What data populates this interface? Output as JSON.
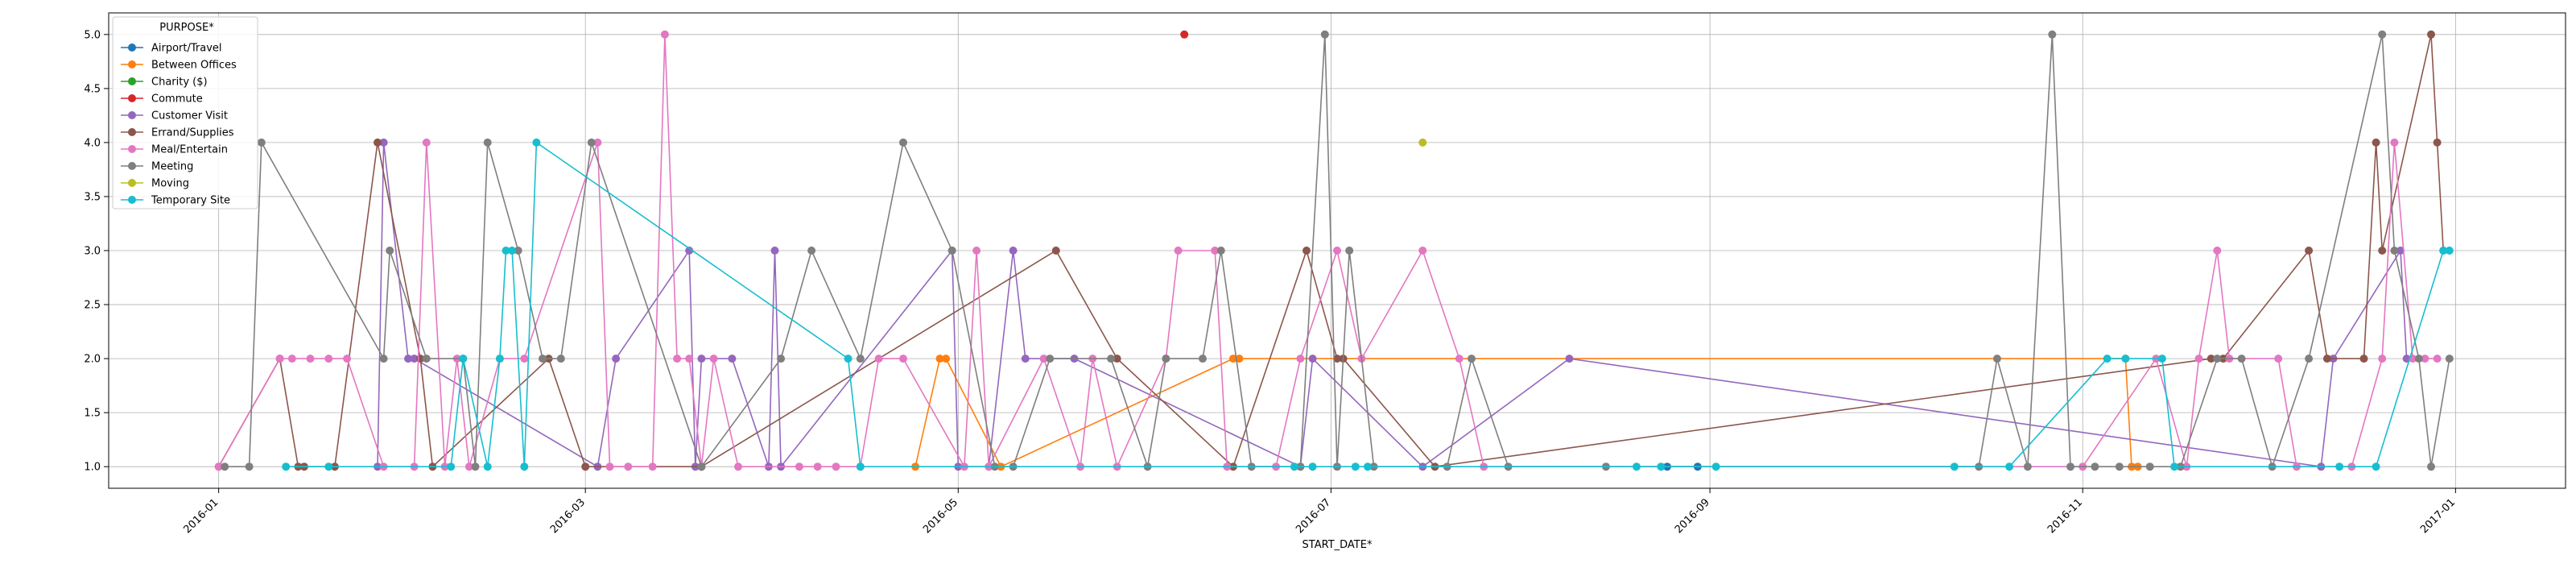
{
  "chart_data": {
    "type": "line",
    "xlabel": "START_DATE*",
    "ylabel": "",
    "legend_title": "PURPOSE*",
    "legend_position": "top-left",
    "grid": true,
    "xlim": [
      "2015-12-14",
      "2017-01-19"
    ],
    "ylim": [
      0.8,
      5.2
    ],
    "x_ticks": [
      "2016-01-01",
      "2016-03-01",
      "2016-05-01",
      "2016-07-01",
      "2016-09-01",
      "2016-11-01",
      "2017-01-01"
    ],
    "x_tick_labels": [
      "2016-01",
      "2016-03",
      "2016-05",
      "2016-07",
      "2016-09",
      "2016-11",
      "2017-01"
    ],
    "y_ticks": [
      1.0,
      1.5,
      2.0,
      2.5,
      3.0,
      3.5,
      4.0,
      4.5,
      5.0
    ],
    "y_tick_labels": [
      "1.0",
      "1.5",
      "2.0",
      "2.5",
      "3.0",
      "3.5",
      "4.0",
      "4.5",
      "5.0"
    ],
    "series": [
      {
        "name": "Airport/Travel",
        "color": "#1f77b4",
        "points": [
          [
            "2016-08-25",
            1
          ],
          [
            "2016-08-30",
            1
          ]
        ]
      },
      {
        "name": "Between Offices",
        "color": "#ff7f0e",
        "points": [
          [
            "2016-04-24",
            1
          ],
          [
            "2016-04-28",
            2
          ],
          [
            "2016-04-29",
            2
          ],
          [
            "2016-05-08",
            1
          ],
          [
            "2016-06-15",
            2
          ],
          [
            "2016-06-16",
            2
          ],
          [
            "2016-11-08",
            2
          ],
          [
            "2016-11-09",
            1
          ],
          [
            "2016-11-10",
            1
          ]
        ]
      },
      {
        "name": "Charity ($)",
        "color": "#2ca02c",
        "points": []
      },
      {
        "name": "Commute",
        "color": "#d62728",
        "points": [
          [
            "2016-06-07",
            5
          ]
        ]
      },
      {
        "name": "Customer Visit",
        "color": "#9467bd",
        "points": [
          [
            "2016-01-27",
            1
          ],
          [
            "2016-01-28",
            4
          ],
          [
            "2016-02-01",
            2
          ],
          [
            "2016-02-02",
            2
          ],
          [
            "2016-03-03",
            1
          ],
          [
            "2016-03-06",
            2
          ],
          [
            "2016-03-18",
            3
          ],
          [
            "2016-03-19",
            1
          ],
          [
            "2016-03-20",
            2
          ],
          [
            "2016-03-25",
            2
          ],
          [
            "2016-03-31",
            1
          ],
          [
            "2016-04-01",
            3
          ],
          [
            "2016-04-02",
            1
          ],
          [
            "2016-04-30",
            3
          ],
          [
            "2016-05-01",
            1
          ],
          [
            "2016-05-06",
            1
          ],
          [
            "2016-05-10",
            3
          ],
          [
            "2016-05-12",
            2
          ],
          [
            "2016-05-20",
            2
          ],
          [
            "2016-06-26",
            1
          ],
          [
            "2016-06-28",
            2
          ],
          [
            "2016-07-16",
            1
          ],
          [
            "2016-08-09",
            2
          ],
          [
            "2016-12-10",
            1
          ],
          [
            "2016-12-12",
            2
          ],
          [
            "2016-12-23",
            3
          ],
          [
            "2016-12-24",
            2
          ]
        ]
      },
      {
        "name": "Errand/Supplies",
        "color": "#8c564b",
        "points": [
          [
            "2016-01-01",
            1
          ],
          [
            "2016-01-11",
            2
          ],
          [
            "2016-01-14",
            1
          ],
          [
            "2016-01-15",
            1
          ],
          [
            "2016-01-20",
            1
          ],
          [
            "2016-01-27",
            4
          ],
          [
            "2016-02-03",
            2
          ],
          [
            "2016-02-05",
            1
          ],
          [
            "2016-02-24",
            2
          ],
          [
            "2016-03-01",
            1
          ],
          [
            "2016-03-20",
            1
          ],
          [
            "2016-05-17",
            3
          ],
          [
            "2016-05-27",
            2
          ],
          [
            "2016-06-15",
            1
          ],
          [
            "2016-06-27",
            3
          ],
          [
            "2016-07-02",
            2
          ],
          [
            "2016-07-03",
            2
          ],
          [
            "2016-07-18",
            1
          ],
          [
            "2016-11-22",
            2
          ],
          [
            "2016-11-24",
            2
          ],
          [
            "2016-12-08",
            3
          ],
          [
            "2016-12-11",
            2
          ],
          [
            "2016-12-17",
            2
          ],
          [
            "2016-12-19",
            4
          ],
          [
            "2016-12-20",
            3
          ],
          [
            "2016-12-28",
            5
          ],
          [
            "2016-12-29",
            4
          ],
          [
            "2016-12-30",
            3
          ]
        ]
      },
      {
        "name": "Meal/Entertain",
        "color": "#e377c2",
        "points": [
          [
            "2016-01-01",
            1
          ],
          [
            "2016-01-11",
            2
          ],
          [
            "2016-01-13",
            2
          ],
          [
            "2016-01-16",
            2
          ],
          [
            "2016-01-19",
            2
          ],
          [
            "2016-01-22",
            2
          ],
          [
            "2016-01-28",
            1
          ],
          [
            "2016-02-02",
            1
          ],
          [
            "2016-02-04",
            4
          ],
          [
            "2016-02-07",
            1
          ],
          [
            "2016-02-09",
            2
          ],
          [
            "2016-02-11",
            1
          ],
          [
            "2016-02-16",
            2
          ],
          [
            "2016-02-20",
            2
          ],
          [
            "2016-03-03",
            4
          ],
          [
            "2016-03-05",
            1
          ],
          [
            "2016-03-08",
            1
          ],
          [
            "2016-03-12",
            1
          ],
          [
            "2016-03-14",
            5
          ],
          [
            "2016-03-16",
            2
          ],
          [
            "2016-03-18",
            2
          ],
          [
            "2016-03-20",
            1
          ],
          [
            "2016-03-22",
            2
          ],
          [
            "2016-03-26",
            1
          ],
          [
            "2016-04-05",
            1
          ],
          [
            "2016-04-08",
            1
          ],
          [
            "2016-04-11",
            1
          ],
          [
            "2016-04-15",
            1
          ],
          [
            "2016-04-18",
            2
          ],
          [
            "2016-04-22",
            2
          ],
          [
            "2016-05-02",
            1
          ],
          [
            "2016-05-04",
            3
          ],
          [
            "2016-05-06",
            1
          ],
          [
            "2016-05-15",
            2
          ],
          [
            "2016-05-21",
            1
          ],
          [
            "2016-05-23",
            2
          ],
          [
            "2016-05-27",
            1
          ],
          [
            "2016-06-04",
            2
          ],
          [
            "2016-06-06",
            3
          ],
          [
            "2016-06-12",
            3
          ],
          [
            "2016-06-14",
            1
          ],
          [
            "2016-06-22",
            1
          ],
          [
            "2016-06-26",
            2
          ],
          [
            "2016-07-02",
            3
          ],
          [
            "2016-07-06",
            2
          ],
          [
            "2016-07-16",
            3
          ],
          [
            "2016-07-22",
            2
          ],
          [
            "2016-07-26",
            1
          ],
          [
            "2016-11-01",
            1
          ],
          [
            "2016-11-13",
            2
          ],
          [
            "2016-11-18",
            1
          ],
          [
            "2016-11-20",
            2
          ],
          [
            "2016-11-23",
            3
          ],
          [
            "2016-11-25",
            2
          ],
          [
            "2016-12-03",
            2
          ],
          [
            "2016-12-06",
            1
          ],
          [
            "2016-12-15",
            1
          ],
          [
            "2016-12-20",
            2
          ],
          [
            "2016-12-22",
            4
          ],
          [
            "2016-12-25",
            2
          ],
          [
            "2016-12-27",
            2
          ],
          [
            "2016-12-29",
            2
          ]
        ]
      },
      {
        "name": "Meeting",
        "color": "#7f7f7f",
        "points": [
          [
            "2016-01-02",
            1
          ],
          [
            "2016-01-06",
            1
          ],
          [
            "2016-01-08",
            4
          ],
          [
            "2016-01-28",
            2
          ],
          [
            "2016-01-29",
            3
          ],
          [
            "2016-02-04",
            2
          ],
          [
            "2016-02-10",
            2
          ],
          [
            "2016-02-12",
            1
          ],
          [
            "2016-02-14",
            4
          ],
          [
            "2016-02-19",
            3
          ],
          [
            "2016-02-23",
            2
          ],
          [
            "2016-02-26",
            2
          ],
          [
            "2016-03-02",
            4
          ],
          [
            "2016-03-20",
            1
          ],
          [
            "2016-04-02",
            2
          ],
          [
            "2016-04-07",
            3
          ],
          [
            "2016-04-15",
            2
          ],
          [
            "2016-04-22",
            4
          ],
          [
            "2016-04-30",
            3
          ],
          [
            "2016-05-07",
            1
          ],
          [
            "2016-05-10",
            1
          ],
          [
            "2016-05-16",
            2
          ],
          [
            "2016-05-26",
            2
          ],
          [
            "2016-06-01",
            1
          ],
          [
            "2016-06-04",
            2
          ],
          [
            "2016-06-10",
            2
          ],
          [
            "2016-06-13",
            3
          ],
          [
            "2016-06-18",
            1
          ],
          [
            "2016-06-26",
            1
          ],
          [
            "2016-06-30",
            5
          ],
          [
            "2016-07-02",
            1
          ],
          [
            "2016-07-04",
            3
          ],
          [
            "2016-07-08",
            1
          ],
          [
            "2016-07-20",
            1
          ],
          [
            "2016-07-24",
            2
          ],
          [
            "2016-07-30",
            1
          ],
          [
            "2016-08-15",
            1
          ],
          [
            "2016-10-15",
            1
          ],
          [
            "2016-10-18",
            2
          ],
          [
            "2016-10-23",
            1
          ],
          [
            "2016-10-27",
            5
          ],
          [
            "2016-10-30",
            1
          ],
          [
            "2016-11-03",
            1
          ],
          [
            "2016-11-07",
            1
          ],
          [
            "2016-11-12",
            1
          ],
          [
            "2016-11-17",
            1
          ],
          [
            "2016-11-23",
            2
          ],
          [
            "2016-11-27",
            2
          ],
          [
            "2016-12-02",
            1
          ],
          [
            "2016-12-08",
            2
          ],
          [
            "2016-12-20",
            5
          ],
          [
            "2016-12-22",
            3
          ],
          [
            "2016-12-26",
            2
          ],
          [
            "2016-12-28",
            1
          ],
          [
            "2016-12-31",
            2
          ]
        ]
      },
      {
        "name": "Moving",
        "color": "#bcbd22",
        "points": [
          [
            "2016-07-16",
            4
          ]
        ]
      },
      {
        "name": "Temporary Site",
        "color": "#17becf",
        "points": [
          [
            "2016-01-12",
            1
          ],
          [
            "2016-01-19",
            1
          ],
          [
            "2016-02-08",
            1
          ],
          [
            "2016-02-10",
            2
          ],
          [
            "2016-02-14",
            1
          ],
          [
            "2016-02-16",
            2
          ],
          [
            "2016-02-17",
            3
          ],
          [
            "2016-02-18",
            3
          ],
          [
            "2016-02-20",
            1
          ],
          [
            "2016-02-22",
            4
          ],
          [
            "2016-04-13",
            2
          ],
          [
            "2016-04-15",
            1
          ],
          [
            "2016-06-25",
            1
          ],
          [
            "2016-06-28",
            1
          ],
          [
            "2016-07-05",
            1
          ],
          [
            "2016-07-07",
            1
          ],
          [
            "2016-08-20",
            1
          ],
          [
            "2016-08-24",
            1
          ],
          [
            "2016-09-02",
            1
          ],
          [
            "2016-10-11",
            1
          ],
          [
            "2016-10-20",
            1
          ],
          [
            "2016-11-05",
            2
          ],
          [
            "2016-11-08",
            2
          ],
          [
            "2016-11-14",
            2
          ],
          [
            "2016-11-16",
            1
          ],
          [
            "2016-12-13",
            1
          ],
          [
            "2016-12-19",
            1
          ],
          [
            "2016-12-30",
            3
          ],
          [
            "2016-12-31",
            3
          ]
        ]
      }
    ]
  }
}
